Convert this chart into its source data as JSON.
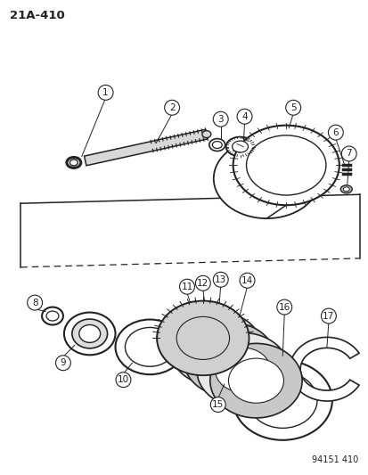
{
  "bg_color": "#ffffff",
  "page_label": "21A-410",
  "figure_code": "94151 410",
  "dark": "#222222",
  "gray": "#888888",
  "lgray": "#cccccc"
}
